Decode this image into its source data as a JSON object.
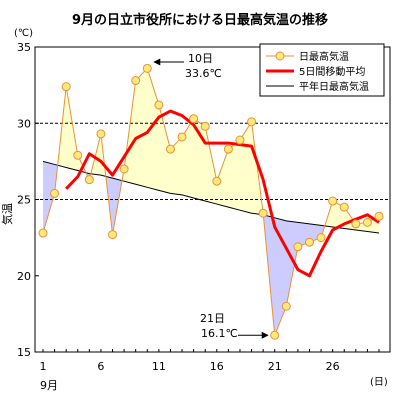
{
  "chart_data": {
    "type": "line",
    "title": "9月の日立市役所における日最高気温の推移",
    "y_unit": "(℃)",
    "ylabel": "気温",
    "x_unit": "(日)",
    "x_month_label": "9月",
    "ylim": [
      15,
      35
    ],
    "xlim": [
      1,
      30
    ],
    "y_ticks": [
      15,
      20,
      25,
      30,
      35
    ],
    "x_ticks": [
      1,
      6,
      11,
      16,
      21,
      26
    ],
    "grid": "horizontal dashed at 25 and 30",
    "legend_position": "top-right",
    "x": [
      1,
      2,
      3,
      4,
      5,
      6,
      7,
      8,
      9,
      10,
      11,
      12,
      13,
      14,
      15,
      16,
      17,
      18,
      19,
      20,
      21,
      22,
      23,
      24,
      25,
      26,
      27,
      28,
      29,
      30
    ],
    "series": [
      {
        "name": "日最高気温",
        "color": "#e8913a",
        "marker_fill": "#ffe97a",
        "values": [
          22.8,
          25.4,
          32.4,
          27.9,
          26.3,
          29.3,
          22.7,
          27.0,
          32.8,
          33.6,
          31.2,
          28.3,
          29.1,
          30.3,
          29.8,
          26.2,
          28.3,
          28.9,
          30.1,
          24.1,
          16.1,
          18.0,
          21.9,
          22.2,
          22.5,
          24.9,
          24.5,
          23.4,
          23.5,
          23.9
        ]
      },
      {
        "name": "5日間移動平均",
        "color": "#ff0000",
        "values": [
          null,
          null,
          25.7,
          26.5,
          28.0,
          27.5,
          26.6,
          27.8,
          29.0,
          29.4,
          30.4,
          30.8,
          30.5,
          29.9,
          28.7,
          28.7,
          28.7,
          28.6,
          28.5,
          26.3,
          23.2,
          21.8,
          20.4,
          20.0,
          21.6,
          23.0,
          23.4,
          23.7,
          24.0,
          23.5
        ]
      },
      {
        "name": "平年日最高気温",
        "color": "#000000",
        "values": [
          27.5,
          27.3,
          27.1,
          26.9,
          26.7,
          26.6,
          26.4,
          26.2,
          26.0,
          25.8,
          25.6,
          25.4,
          25.3,
          25.1,
          24.9,
          24.7,
          24.5,
          24.3,
          24.1,
          24.0,
          23.8,
          23.6,
          23.5,
          23.4,
          23.3,
          23.2,
          23.1,
          23.0,
          22.9,
          22.8
        ]
      }
    ],
    "fill_above_color": "#ffffcc",
    "fill_below_color": "#ccccff",
    "annotations": [
      {
        "day": 10,
        "value": 33.6,
        "label_day": "10日",
        "label_temp": "33.6℃"
      },
      {
        "day": 21,
        "value": 16.1,
        "label_day": "21日",
        "label_temp": "16.1℃"
      }
    ]
  }
}
